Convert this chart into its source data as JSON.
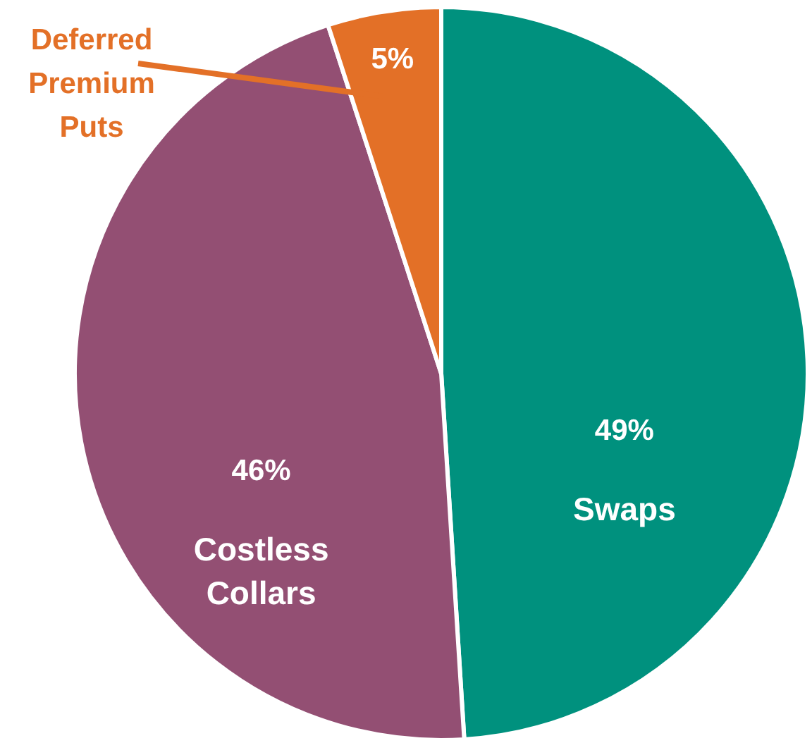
{
  "chart_data": {
    "type": "pie",
    "categories": [
      "Swaps",
      "Costless Collars",
      "Deferred Premium Puts"
    ],
    "values": [
      49,
      46,
      5
    ],
    "value_labels": [
      "49%",
      "46%",
      "5%"
    ],
    "colors": [
      "#00917e",
      "#934f73",
      "#e37027"
    ]
  }
}
